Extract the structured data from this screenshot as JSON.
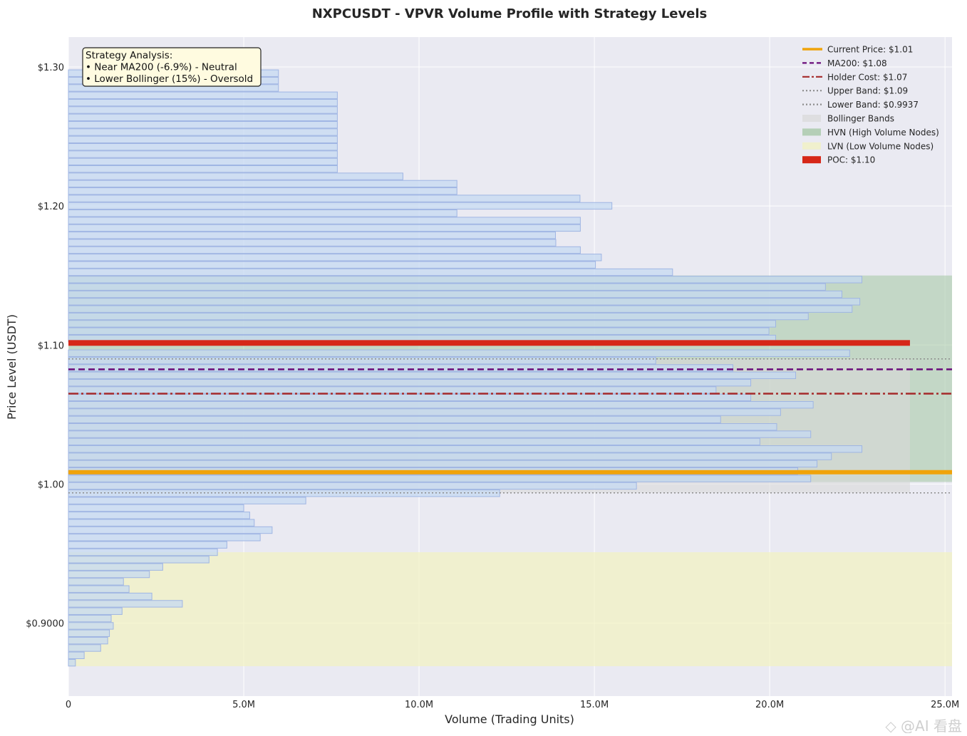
{
  "watermark": "◇ @AI 看盘",
  "chart_data": {
    "type": "bar",
    "orientation": "horizontal",
    "title": "NXPCUSDT - VPVR Volume Profile with Strategy Levels",
    "xlabel": "Volume (Trading Units)",
    "ylabel": "Price Level (USDT)",
    "xlim": [
      0,
      25200000
    ],
    "ylim": [
      0.8475,
      1.3215
    ],
    "x_ticks": [
      0,
      5000000,
      10000000,
      15000000,
      20000000,
      25000000
    ],
    "x_tick_labels": [
      "0",
      "5.0M",
      "10.0M",
      "15.0M",
      "20.0M",
      "25.0M"
    ],
    "y_ticks": [
      0.9,
      1.0,
      1.1,
      1.2,
      1.3
    ],
    "y_tick_labels": [
      "$0.9000",
      "$1.00",
      "$1.10",
      "$1.20",
      "$1.30"
    ],
    "grid": true,
    "legend_position": "top-right",
    "bin_height": 0.0048,
    "bins": [
      {
        "price": 0.8715,
        "volume": 200000,
        "zone": "lvn"
      },
      {
        "price": 0.8768,
        "volume": 450000,
        "zone": "lvn"
      },
      {
        "price": 0.8821,
        "volume": 920000,
        "zone": "lvn"
      },
      {
        "price": 0.8874,
        "volume": 1120000,
        "zone": "lvn"
      },
      {
        "price": 0.8927,
        "volume": 1170000,
        "zone": "lvn"
      },
      {
        "price": 0.898,
        "volume": 1280000,
        "zone": "lvn"
      },
      {
        "price": 0.9033,
        "volume": 1220000,
        "zone": "lvn"
      },
      {
        "price": 0.9086,
        "volume": 1530000,
        "zone": "lvn"
      },
      {
        "price": 0.9139,
        "volume": 3250000,
        "zone": "lvn"
      },
      {
        "price": 0.9192,
        "volume": 2380000,
        "zone": "lvn"
      },
      {
        "price": 0.9245,
        "volume": 1730000,
        "zone": "lvn"
      },
      {
        "price": 0.9298,
        "volume": 1570000,
        "zone": "lvn"
      },
      {
        "price": 0.9351,
        "volume": 2310000,
        "zone": "lvn"
      },
      {
        "price": 0.9404,
        "volume": 2690000,
        "zone": "lvn"
      },
      {
        "price": 0.9457,
        "volume": 4010000,
        "zone": "lvn"
      },
      {
        "price": 0.951,
        "volume": 4250000,
        "zone": "normal"
      },
      {
        "price": 0.9563,
        "volume": 4520000,
        "zone": "normal"
      },
      {
        "price": 0.9616,
        "volume": 5470000,
        "zone": "normal"
      },
      {
        "price": 0.9669,
        "volume": 5810000,
        "zone": "normal"
      },
      {
        "price": 0.9722,
        "volume": 5300000,
        "zone": "normal"
      },
      {
        "price": 0.9775,
        "volume": 5170000,
        "zone": "normal"
      },
      {
        "price": 0.9828,
        "volume": 5000000,
        "zone": "normal"
      },
      {
        "price": 0.9881,
        "volume": 6770000,
        "zone": "normal"
      },
      {
        "price": 0.9934,
        "volume": 12300000,
        "zone": "normal"
      },
      {
        "price": 0.9987,
        "volume": 16200000,
        "zone": "normal"
      },
      {
        "price": 1.004,
        "volume": 21170000,
        "zone": "hvn"
      },
      {
        "price": 1.0093,
        "volume": 20800000,
        "zone": "hvn"
      },
      {
        "price": 1.0146,
        "volume": 21350000,
        "zone": "hvn"
      },
      {
        "price": 1.0199,
        "volume": 21760000,
        "zone": "hvn"
      },
      {
        "price": 1.0252,
        "volume": 22630000,
        "zone": "hvn"
      },
      {
        "price": 1.0305,
        "volume": 19720000,
        "zone": "hvn"
      },
      {
        "price": 1.0358,
        "volume": 21170000,
        "zone": "hvn"
      },
      {
        "price": 1.0411,
        "volume": 20200000,
        "zone": "hvn"
      },
      {
        "price": 1.0464,
        "volume": 18600000,
        "zone": "hvn"
      },
      {
        "price": 1.0517,
        "volume": 20310000,
        "zone": "hvn"
      },
      {
        "price": 1.057,
        "volume": 21240000,
        "zone": "hvn"
      },
      {
        "price": 1.0623,
        "volume": 19460000,
        "zone": "hvn"
      },
      {
        "price": 1.0676,
        "volume": 18470000,
        "zone": "hvn"
      },
      {
        "price": 1.0729,
        "volume": 19460000,
        "zone": "hvn"
      },
      {
        "price": 1.0782,
        "volume": 20740000,
        "zone": "hvn"
      },
      {
        "price": 1.0835,
        "volume": 18950000,
        "zone": "hvn"
      },
      {
        "price": 1.0888,
        "volume": 16750000,
        "zone": "hvn"
      },
      {
        "price": 1.0941,
        "volume": 22280000,
        "zone": "hvn"
      },
      {
        "price": 1.0994,
        "volume": 24000000,
        "zone": "poc"
      },
      {
        "price": 1.1047,
        "volume": 20170000,
        "zone": "hvn"
      },
      {
        "price": 1.11,
        "volume": 19980000,
        "zone": "hvn"
      },
      {
        "price": 1.1153,
        "volume": 20170000,
        "zone": "hvn"
      },
      {
        "price": 1.1206,
        "volume": 21100000,
        "zone": "hvn"
      },
      {
        "price": 1.1259,
        "volume": 22350000,
        "zone": "hvn"
      },
      {
        "price": 1.1312,
        "volume": 22570000,
        "zone": "hvn"
      },
      {
        "price": 1.1365,
        "volume": 22060000,
        "zone": "hvn"
      },
      {
        "price": 1.1418,
        "volume": 21590000,
        "zone": "hvn"
      },
      {
        "price": 1.1471,
        "volume": 22630000,
        "zone": "hvn"
      },
      {
        "price": 1.1524,
        "volume": 17230000,
        "zone": "normal"
      },
      {
        "price": 1.1577,
        "volume": 15030000,
        "zone": "normal"
      },
      {
        "price": 1.163,
        "volume": 15200000,
        "zone": "normal"
      },
      {
        "price": 1.1683,
        "volume": 14600000,
        "zone": "normal"
      },
      {
        "price": 1.1736,
        "volume": 13900000,
        "zone": "normal"
      },
      {
        "price": 1.1789,
        "volume": 13890000,
        "zone": "normal"
      },
      {
        "price": 1.1842,
        "volume": 14600000,
        "zone": "normal"
      },
      {
        "price": 1.1895,
        "volume": 14600000,
        "zone": "normal"
      },
      {
        "price": 1.1948,
        "volume": 11080000,
        "zone": "normal"
      },
      {
        "price": 1.2001,
        "volume": 15500000,
        "zone": "normal"
      },
      {
        "price": 1.2054,
        "volume": 14590000,
        "zone": "normal"
      },
      {
        "price": 1.2107,
        "volume": 11080000,
        "zone": "normal"
      },
      {
        "price": 1.216,
        "volume": 11080000,
        "zone": "normal"
      },
      {
        "price": 1.2213,
        "volume": 9540000,
        "zone": "normal"
      },
      {
        "price": 1.2266,
        "volume": 7670000,
        "zone": "normal"
      },
      {
        "price": 1.2319,
        "volume": 7670000,
        "zone": "normal"
      },
      {
        "price": 1.2372,
        "volume": 7670000,
        "zone": "normal"
      },
      {
        "price": 1.2425,
        "volume": 7670000,
        "zone": "normal"
      },
      {
        "price": 1.2478,
        "volume": 7670000,
        "zone": "normal"
      },
      {
        "price": 1.2531,
        "volume": 7670000,
        "zone": "normal"
      },
      {
        "price": 1.2584,
        "volume": 7670000,
        "zone": "normal"
      },
      {
        "price": 1.2637,
        "volume": 7670000,
        "zone": "normal"
      },
      {
        "price": 1.269,
        "volume": 7670000,
        "zone": "normal"
      },
      {
        "price": 1.2743,
        "volume": 7670000,
        "zone": "normal"
      },
      {
        "price": 1.2796,
        "volume": 7670000,
        "zone": "normal"
      },
      {
        "price": 1.2849,
        "volume": 5990000,
        "zone": "normal"
      },
      {
        "price": 1.2902,
        "volume": 5990000,
        "zone": "normal"
      },
      {
        "price": 1.2955,
        "volume": 5990000,
        "zone": "normal"
      }
    ],
    "zones": [
      {
        "name": "Bollinger Bands",
        "y0": 0.9937,
        "y1": 1.09,
        "x0": 0,
        "x1": 24000000,
        "color": "#d9d9d9"
      },
      {
        "name": "HVN (High Volume Nodes)",
        "y0": 1.0015,
        "y1": 1.15,
        "x0": 0,
        "x1": 25200000,
        "color": "#a3c6a3"
      },
      {
        "name": "LVN (Low Volume Nodes)",
        "y0": 0.869,
        "y1": 0.951,
        "x0": 0,
        "x1": 25200000,
        "color": "#f2f2c0"
      }
    ],
    "levels": [
      {
        "name": "Current Price: $1.01",
        "price": 1.0085,
        "color": "#f0a30a",
        "width": 6,
        "dash": ""
      },
      {
        "name": "MA200: $1.08",
        "price": 1.0825,
        "color": "#6a0d7a",
        "width": 2.5,
        "dash": "9,5"
      },
      {
        "name": "Holder Cost: $1.07",
        "price": 1.065,
        "color": "#a52a2a",
        "width": 2.5,
        "dash": "14,4,3,4"
      },
      {
        "name": "Upper Band: $1.09",
        "price": 1.09,
        "color": "#8c8c8c",
        "width": 1.5,
        "dash": "2,3"
      },
      {
        "name": "Lower Band: $0.9937",
        "price": 0.9937,
        "color": "#8c8c8c",
        "width": 1.5,
        "dash": "2,3"
      }
    ],
    "poc": {
      "name": "POC: $1.10",
      "price": 1.1015,
      "volume": 24000000,
      "color": "#d62718"
    },
    "legend": [
      {
        "label": "Current Price: $1.01",
        "kind": "line",
        "color": "#f0a30a",
        "dash": ""
      },
      {
        "label": "MA200: $1.08",
        "kind": "line",
        "color": "#6a0d7a",
        "dash": "6,4"
      },
      {
        "label": "Holder Cost: $1.07",
        "kind": "line",
        "color": "#a52a2a",
        "dash": "10,3,3,3"
      },
      {
        "label": "Upper Band: $1.09",
        "kind": "line",
        "color": "#8c8c8c",
        "dash": "2,3"
      },
      {
        "label": "Lower Band: $0.9937",
        "kind": "line",
        "color": "#8c8c8c",
        "dash": "2,3"
      },
      {
        "label": "Bollinger Bands",
        "kind": "patch",
        "color": "#d9d9d9"
      },
      {
        "label": "HVN (High Volume Nodes)",
        "kind": "patch",
        "color": "#a3c6a3"
      },
      {
        "label": "LVN (Low Volume Nodes)",
        "kind": "patch",
        "color": "#f2f2c0"
      },
      {
        "label": "POC: $1.10",
        "kind": "patch",
        "color": "#d62718"
      }
    ],
    "annotation": {
      "lines": [
        "Strategy Analysis:",
        "• Near MA200 (-6.9%) - Neutral",
        "• Lower Bollinger (15%) - Oversold"
      ],
      "background": "#fffbe0"
    },
    "colors": {
      "plot_bg": "#eaeaf2",
      "grid": "#ffffff",
      "bar_fill": "#c6d9f2",
      "bar_edge": "#9fb5e3"
    }
  }
}
